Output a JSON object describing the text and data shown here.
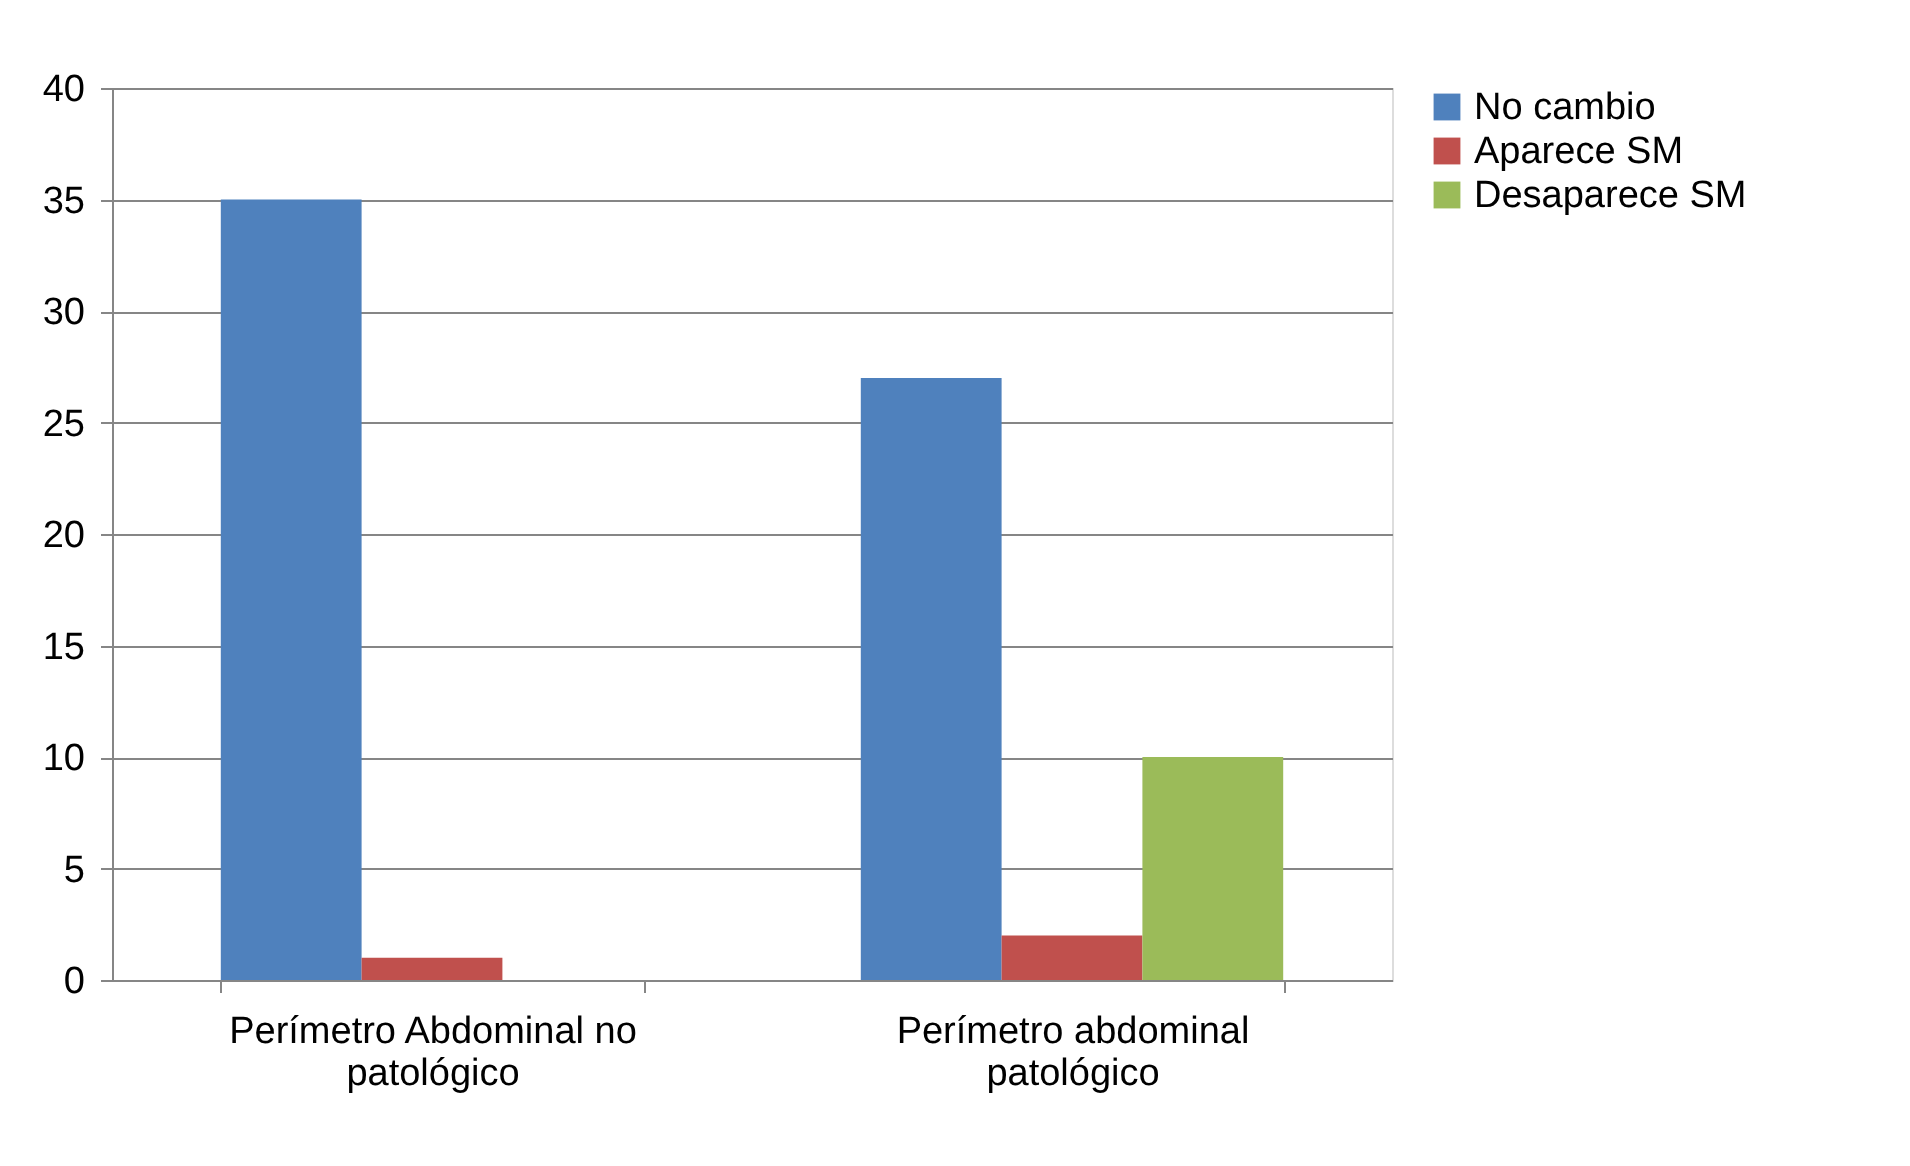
{
  "chart_data": {
    "type": "bar",
    "categories": [
      "Perímetro Abdominal  no patológico",
      "Perímetro abdominal patológico"
    ],
    "series": [
      {
        "name": "No cambio",
        "color": "#4f81bd",
        "values": [
          35,
          27
        ]
      },
      {
        "name": "Aparece SM",
        "color": "#c0504d",
        "values": [
          1,
          2
        ]
      },
      {
        "name": "Desaparece SM",
        "color": "#9bbb59",
        "values": [
          0,
          10
        ]
      }
    ],
    "ylim": [
      0,
      40
    ],
    "yticks": [
      0,
      5,
      10,
      15,
      20,
      25,
      30,
      35,
      40
    ],
    "grid": "y",
    "legend": "right"
  }
}
